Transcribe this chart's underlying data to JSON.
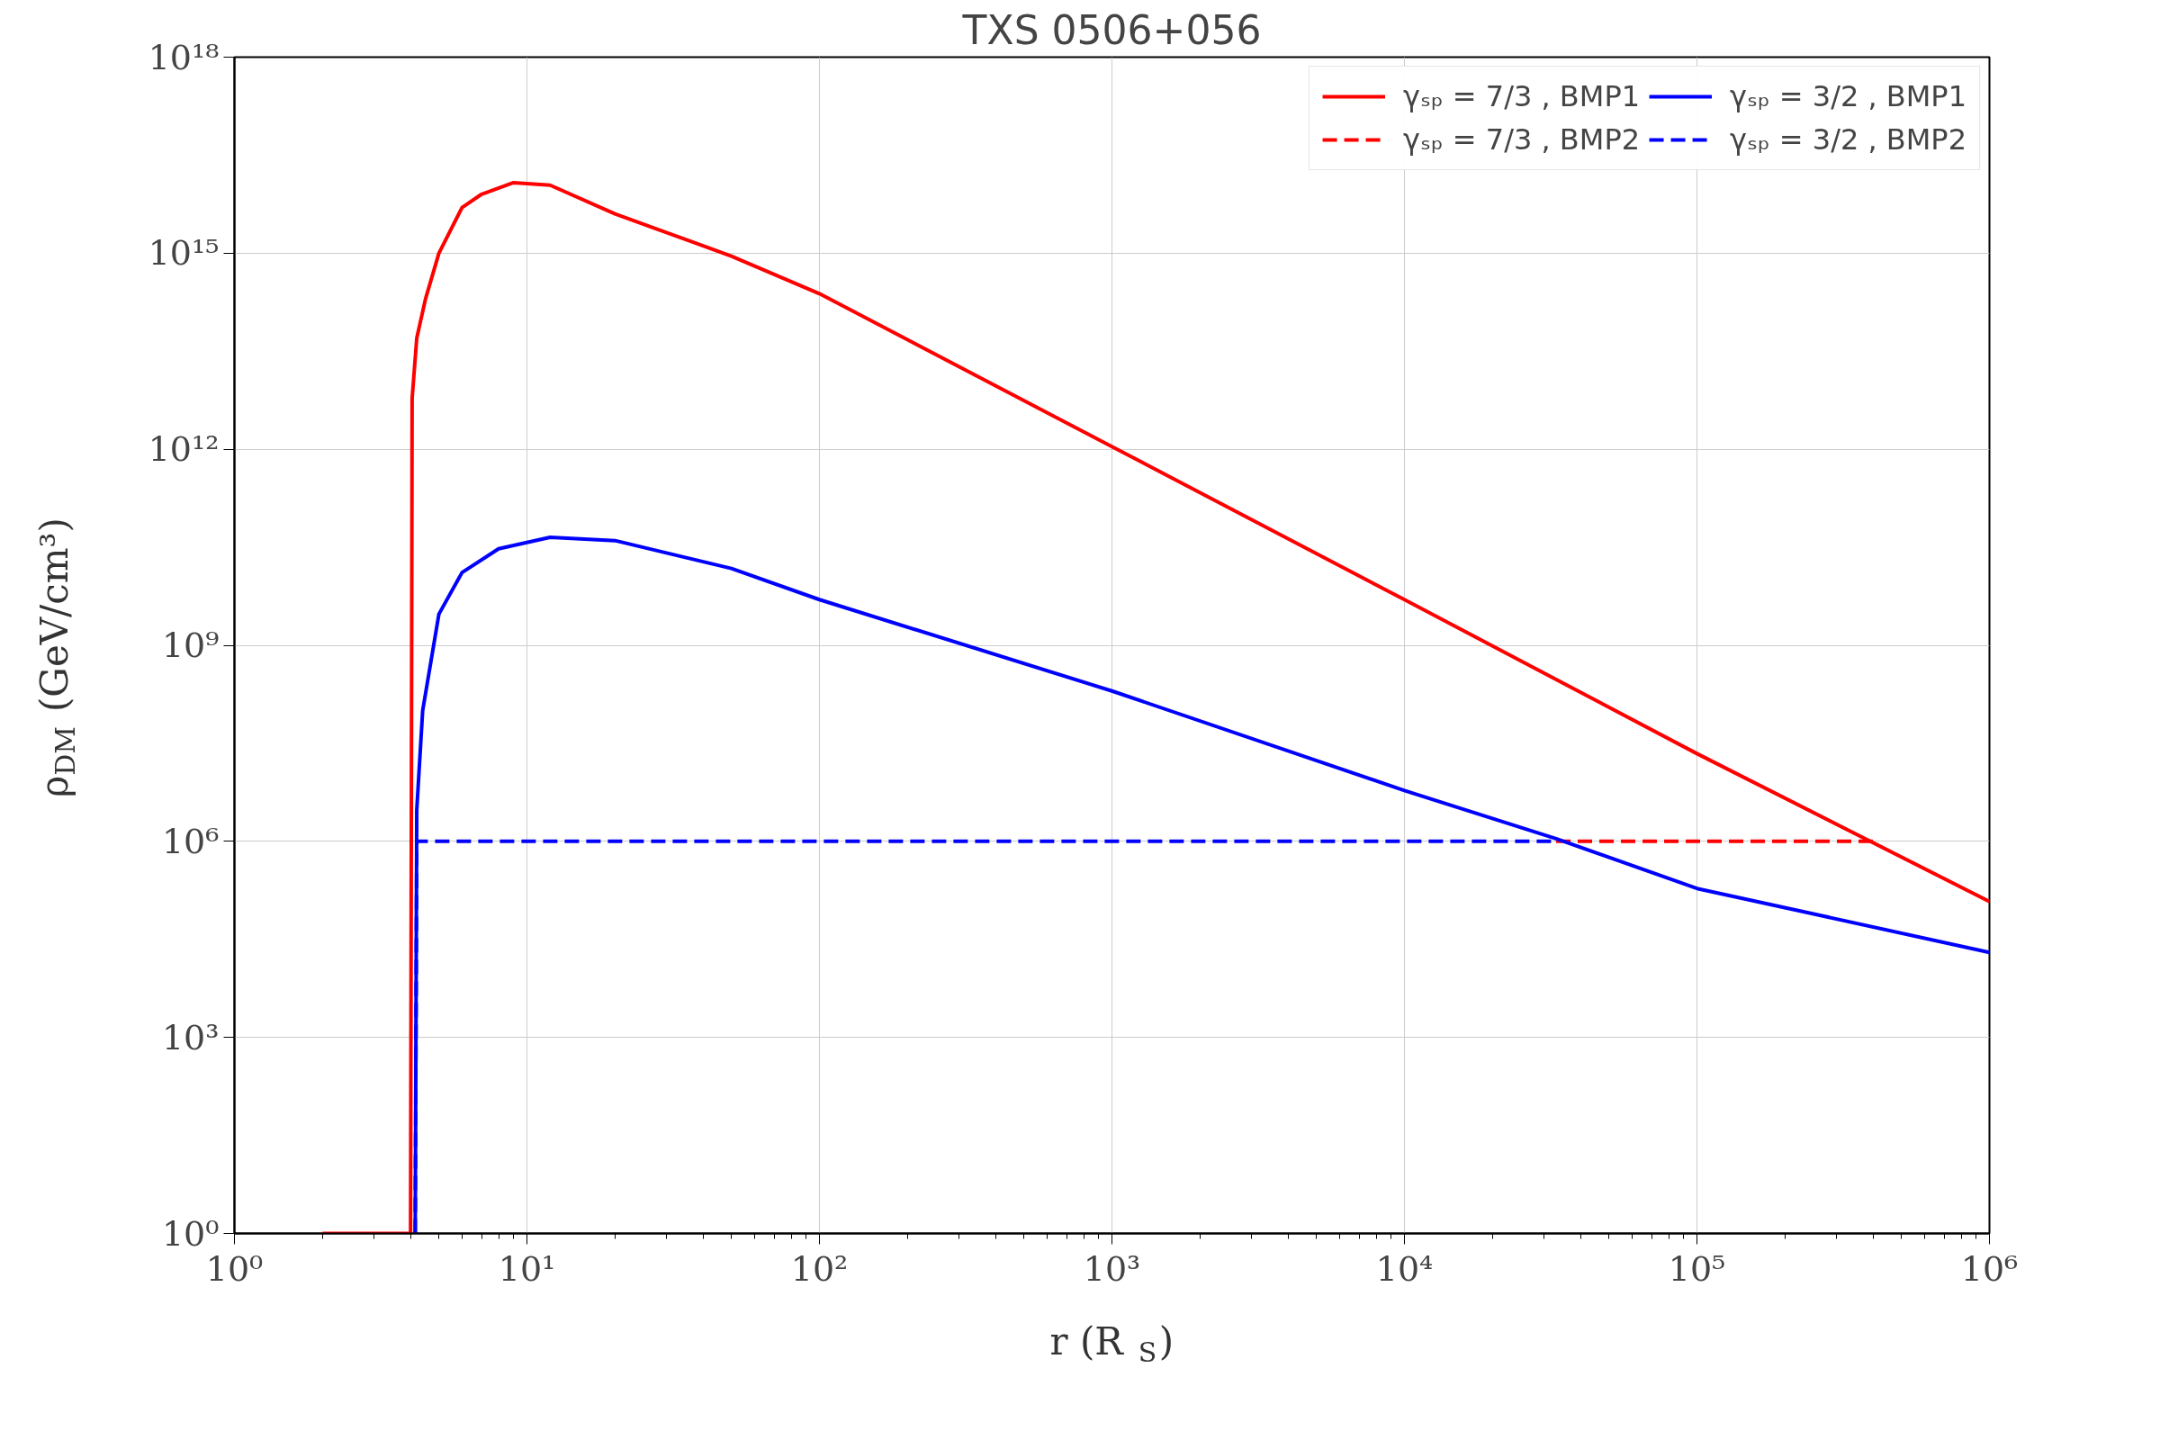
{
  "chart_data": {
    "type": "line",
    "title": "TXS 0506+056",
    "xlabel": "r (R$_{S}$)",
    "ylabel": "ρ$_{DM}$ (GeV/cm³)",
    "log": "xy",
    "grid": true,
    "legend": "top right",
    "xlim": [
      1,
      1000000
    ],
    "ylim": [
      1,
      1e+18
    ],
    "xticks": [
      {
        "value": 1,
        "label": "10⁰"
      },
      {
        "value": 10,
        "label": "10¹"
      },
      {
        "value": 100,
        "label": "10²"
      },
      {
        "value": 1000,
        "label": "10³"
      },
      {
        "value": 10000,
        "label": "10⁴"
      },
      {
        "value": 100000,
        "label": "10⁵"
      },
      {
        "value": 1000000,
        "label": "10⁶"
      }
    ],
    "yticks": [
      {
        "value": 1,
        "label": "10⁰"
      },
      {
        "value": 1000,
        "label": "10³"
      },
      {
        "value": 1000000,
        "label": "10⁶"
      },
      {
        "value": 1000000000.0,
        "label": "10⁹"
      },
      {
        "value": 1000000000000.0,
        "label": "10¹²"
      },
      {
        "value": 1000000000000000.0,
        "label": "10¹⁵"
      },
      {
        "value": 1e+18,
        "label": "10¹⁸"
      }
    ],
    "series": [
      {
        "name": "γₛₚ = 7/3 , BMP1",
        "color": "#ff0000",
        "line_style": "solid",
        "x": [
          2,
          4,
          4.05,
          4.2,
          4.5,
          5,
          6,
          7,
          9,
          12,
          20,
          50,
          100,
          1000,
          10000,
          100000,
          1000000
        ],
        "values": [
          1,
          1,
          6000000000000.0,
          50000000000000.0,
          200000000000000.0,
          1000000000000000.0,
          5000000000000000.0,
          8000000000000000.0,
          1.2e+16,
          1.1e+16,
          4000000000000000.0,
          900000000000000.0,
          240000000000000.0,
          1100000000000.0,
          5000000000.0,
          22000000.0,
          120000.0
        ]
      },
      {
        "name": "γₛₚ = 7/3 , BMP2",
        "color": "#ff0000",
        "line_style": "dashed",
        "x": [
          33000,
          400000
        ],
        "values": [
          1000000,
          1000000
        ]
      },
      {
        "name": "γₛₚ = 3/2 , BMP1",
        "color": "#0000ff",
        "line_style": "solid",
        "x": [
          4.15,
          4.2,
          4.4,
          5,
          6,
          8,
          12,
          20,
          50,
          100,
          1000,
          10000,
          33000,
          100000,
          1000000
        ],
        "values": [
          1,
          3000000.0,
          100000000.0,
          3000000000.0,
          13000000000.0,
          30000000000.0,
          45000000000.0,
          40000000000.0,
          15000000000.0,
          5000000000.0,
          200000000.0,
          6000000.0,
          1100000.0,
          190000.0,
          20000.0
        ]
      },
      {
        "name": "γₛₚ = 3/2 , BMP2",
        "color": "#0000ff",
        "line_style": "dashed",
        "x": [
          4.15,
          4.2,
          33000
        ],
        "values": [
          1,
          1000000,
          1000000
        ]
      }
    ]
  }
}
